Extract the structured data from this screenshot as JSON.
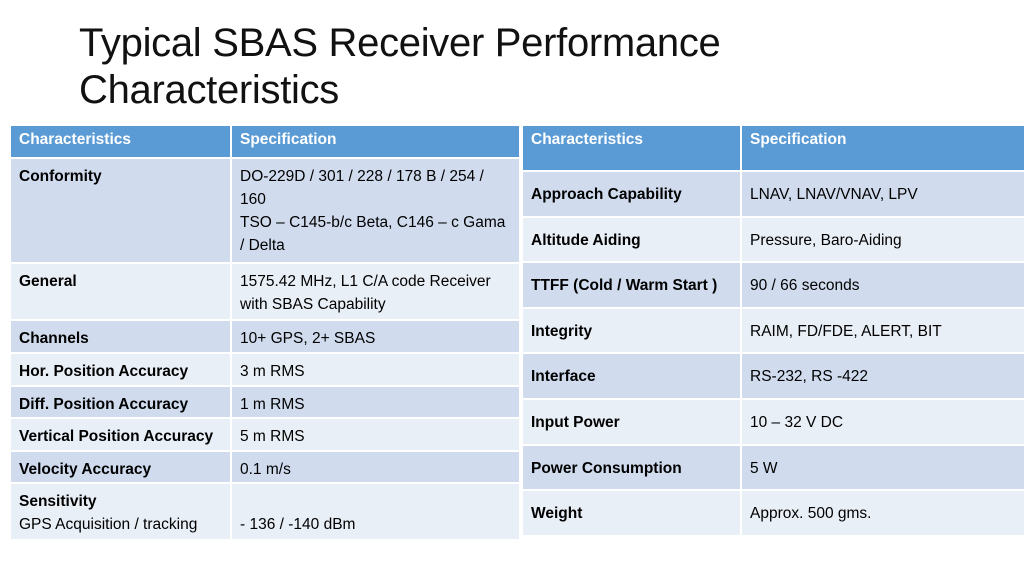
{
  "title": "Typical SBAS Receiver Performance Characteristics",
  "table1": {
    "headers": [
      "Characteristics",
      "Specification"
    ],
    "rows": [
      {
        "label": "Conformity",
        "spec": "DO-229D / 301 / 228 / 178 B / 254 / 160",
        "spec2": "TSO – C145-b/c Beta, C146 – c Gama / Delta"
      },
      {
        "label": "General",
        "spec": "1575.42 MHz, L1 C/A code Receiver with SBAS Capability"
      },
      {
        "label": "Channels",
        "spec": "10+ GPS, 2+ SBAS"
      },
      {
        "label": "Hor. Position Accuracy",
        "spec": "3 m RMS"
      },
      {
        "label": "Diff. Position Accuracy",
        "spec": "1 m RMS"
      },
      {
        "label": "Vertical Position Accuracy",
        "spec": "5 m RMS"
      },
      {
        "label": "Velocity Accuracy",
        "spec": "0.1 m/s"
      },
      {
        "label": "Sensitivity",
        "sublabel": "GPS Acquisition / tracking",
        "spec": "- 136 / -140 dBm"
      }
    ]
  },
  "table2": {
    "headers": [
      "Characteristics",
      "Specification"
    ],
    "rows": [
      {
        "label": "Approach Capability",
        "spec": "LNAV, LNAV/VNAV, LPV"
      },
      {
        "label": "Altitude Aiding",
        "spec": "Pressure, Baro-Aiding"
      },
      {
        "label": "TTFF (Cold / Warm Start )",
        "spec": "90 / 66 seconds"
      },
      {
        "label": "Integrity",
        "spec": "RAIM, FD/FDE, ALERT, BIT"
      },
      {
        "label": "Interface",
        "spec": "RS-232, RS -422"
      },
      {
        "label": "Input Power",
        "spec": "10 – 32 V DC"
      },
      {
        "label": "Power Consumption",
        "spec": "5 W"
      },
      {
        "label": "Weight",
        "spec": "Approx. 500 gms."
      }
    ]
  },
  "colors": {
    "header": "#5b9bd5",
    "row_dark": "#d0dcee",
    "row_light": "#e9eff7"
  }
}
